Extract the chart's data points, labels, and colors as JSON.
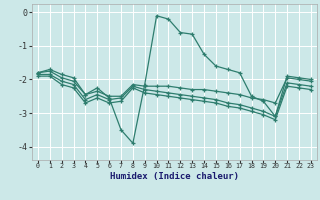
{
  "xlabel": "Humidex (Indice chaleur)",
  "bg_color": "#cce8e8",
  "grid_color": "#ffffff",
  "line_color": "#2e7d6e",
  "xlim": [
    -0.5,
    23.5
  ],
  "ylim": [
    -4.4,
    0.25
  ],
  "yticks": [
    0,
    -1,
    -2,
    -3,
    -4
  ],
  "xticks": [
    0,
    1,
    2,
    3,
    4,
    5,
    6,
    7,
    8,
    9,
    10,
    11,
    12,
    13,
    14,
    15,
    16,
    17,
    18,
    19,
    20,
    21,
    22,
    23
  ],
  "line1_x": [
    0,
    1,
    2,
    3,
    4,
    5,
    6,
    7,
    8,
    9,
    10,
    11,
    12,
    13,
    14,
    15,
    16,
    17,
    18,
    19,
    20,
    21,
    22,
    23
  ],
  "line1_y": [
    -1.8,
    -1.7,
    -1.85,
    -1.95,
    -2.45,
    -2.25,
    -2.55,
    -3.5,
    -3.9,
    -2.15,
    -0.1,
    -0.2,
    -0.6,
    -0.65,
    -1.25,
    -1.6,
    -1.7,
    -1.8,
    -2.5,
    -2.65,
    -3.1,
    -1.9,
    -1.95,
    -2.0
  ],
  "line2_x": [
    0,
    1,
    2,
    3,
    4,
    5,
    6,
    7,
    8,
    9,
    10,
    11,
    12,
    13,
    14,
    15,
    16,
    17,
    18,
    19,
    20,
    21,
    22,
    23
  ],
  "line2_y": [
    -1.8,
    -1.75,
    -1.95,
    -2.05,
    -2.45,
    -2.35,
    -2.5,
    -2.5,
    -2.15,
    -2.2,
    -2.2,
    -2.2,
    -2.25,
    -2.3,
    -2.3,
    -2.35,
    -2.4,
    -2.45,
    -2.55,
    -2.6,
    -2.7,
    -1.95,
    -2.0,
    -2.05
  ],
  "line3_x": [
    0,
    1,
    2,
    3,
    4,
    5,
    6,
    7,
    8,
    9,
    10,
    11,
    12,
    13,
    14,
    15,
    16,
    17,
    18,
    19,
    20,
    21,
    22,
    23
  ],
  "line3_y": [
    -1.85,
    -1.85,
    -2.05,
    -2.15,
    -2.6,
    -2.45,
    -2.6,
    -2.55,
    -2.2,
    -2.3,
    -2.35,
    -2.4,
    -2.45,
    -2.5,
    -2.55,
    -2.6,
    -2.7,
    -2.75,
    -2.85,
    -2.95,
    -3.1,
    -2.1,
    -2.15,
    -2.2
  ],
  "line4_x": [
    0,
    1,
    2,
    3,
    4,
    5,
    6,
    7,
    8,
    9,
    10,
    11,
    12,
    13,
    14,
    15,
    16,
    17,
    18,
    19,
    20,
    21,
    22,
    23
  ],
  "line4_y": [
    -1.9,
    -1.9,
    -2.15,
    -2.25,
    -2.7,
    -2.55,
    -2.7,
    -2.65,
    -2.25,
    -2.4,
    -2.45,
    -2.5,
    -2.55,
    -2.6,
    -2.65,
    -2.7,
    -2.8,
    -2.85,
    -2.95,
    -3.05,
    -3.2,
    -2.2,
    -2.25,
    -2.3
  ]
}
